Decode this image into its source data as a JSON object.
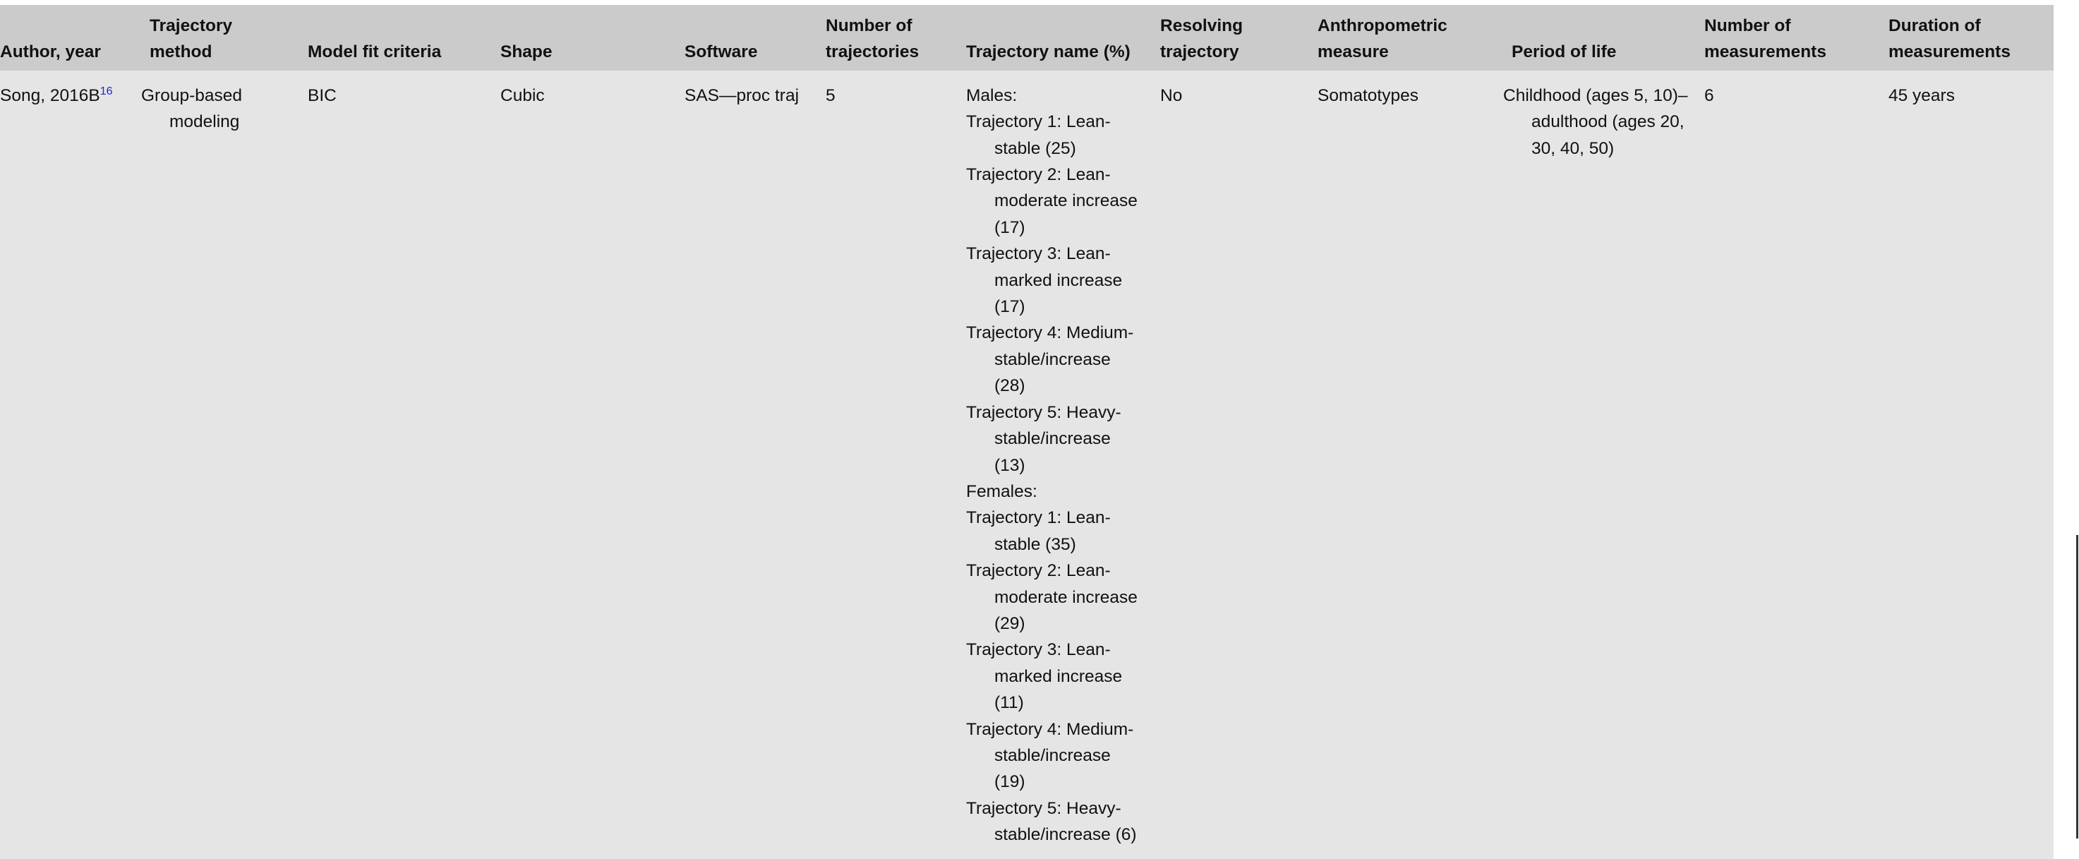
{
  "headers": [
    "Author, year",
    "Trajectory method",
    "Model fit criteria",
    "Shape",
    "Software",
    "Number of trajectories",
    "Trajectory name (%)",
    "Resolving trajectory",
    "Anthropometric measure",
    "Period of life",
    "Number of measurements",
    "Duration of measurements"
  ],
  "row": {
    "author": "Song, 2016B",
    "author_ref": "16",
    "method": "Group-based modeling",
    "fit": "BIC",
    "shape": "Cubic",
    "software": "SAS—proc traj",
    "num_trajectories": "5",
    "trajectory_names": [
      "Males:",
      "Trajectory 1: Lean-stable (25)",
      "Trajectory 2: Lean-moderate increase (17)",
      "Trajectory 3: Lean-marked increase (17)",
      "Trajectory 4: Medium-stable/increase (28)",
      "Trajectory 5: Heavy-stable/increase (13)",
      "Females:",
      "Trajectory 1: Lean-stable (35)",
      "Trajectory 2: Lean-moderate increase (29)",
      "Trajectory 3: Lean-marked increase (11)",
      "Trajectory 4: Medium-stable/increase (19)",
      "Trajectory 5: Heavy-stable/increase (6)"
    ],
    "resolving": "No",
    "measure": "Somatotypes",
    "period": "Childhood (ages 5, 10)–adulthood (ages 20, 30, 40, 50)",
    "num_measurements": "6",
    "duration": "45 years"
  }
}
